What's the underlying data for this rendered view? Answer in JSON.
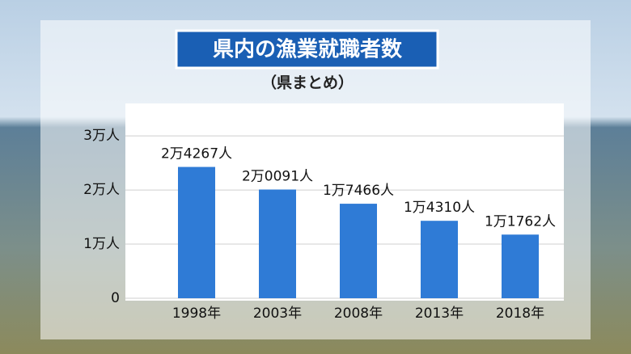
{
  "chart_data": {
    "type": "bar",
    "title": "県内の漁業就職者数",
    "subtitle": "（県まとめ）",
    "categories": [
      "1998年",
      "2003年",
      "2008年",
      "2013年",
      "2018年"
    ],
    "values": [
      24267,
      20091,
      17466,
      14310,
      11762
    ],
    "value_labels": [
      "2万4267人",
      "2万0091人",
      "1万7466人",
      "1万4310人",
      "1万1762人"
    ],
    "color": "#2f7bd6",
    "ylim": [
      0,
      36000
    ],
    "yticks": [
      0,
      {
        "value": 10000,
        "label": "1万人"
      },
      {
        "value": 20000,
        "label": "2万人"
      },
      {
        "value": 30000,
        "label": "3万人"
      }
    ],
    "grid": true
  }
}
